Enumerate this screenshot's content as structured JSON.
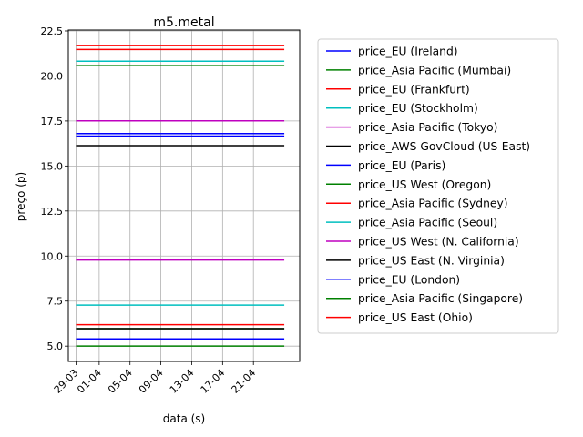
{
  "chart_data": {
    "type": "line",
    "title": "m5.metal",
    "xlabel": "data (s)",
    "ylabel": "preço (p)",
    "x_tick_labels": [
      "29-03",
      "01-04",
      "05-04",
      "09-04",
      "13-04",
      "17-04",
      "21-04"
    ],
    "x_ticks": [
      "2018-03-29",
      "2018-04-01",
      "2018-04-05",
      "2018-04-09",
      "2018-04-13",
      "2018-04-17",
      "2018-04-21"
    ],
    "x_range": [
      "2018-03-28",
      "2018-04-27"
    ],
    "x_start": "2018-03-29",
    "x_end": "2018-04-25",
    "y_ticks": [
      5.0,
      7.5,
      10.0,
      12.5,
      15.0,
      17.5,
      20.0,
      22.5
    ],
    "y_tick_labels": [
      "5.0",
      "7.5",
      "10.0",
      "12.5",
      "15.0",
      "17.5",
      "20.0",
      "22.5"
    ],
    "ylim": [
      4.15,
      22.55
    ],
    "grid": true,
    "legend_position": "outside-right",
    "series": [
      {
        "name": "price_EU (Ireland)",
        "color": "#0000ff",
        "values": [
          16.8,
          16.8
        ]
      },
      {
        "name": "price_Asia Pacific (Mumbai)",
        "color": "#008000",
        "values": [
          20.57,
          20.57
        ]
      },
      {
        "name": "price_EU (Frankfurt)",
        "color": "#ff0000",
        "values": [
          21.7,
          21.7
        ]
      },
      {
        "name": "price_EU (Stockholm)",
        "color": "#00bfbf",
        "values": [
          20.82,
          20.82
        ]
      },
      {
        "name": "price_Asia Pacific (Tokyo)",
        "color": "#bf00bf",
        "values": [
          17.51,
          17.51
        ]
      },
      {
        "name": "price_AWS GovCloud (US-East)",
        "color": "#000000",
        "values": [
          16.13,
          16.13
        ]
      },
      {
        "name": "price_EU (Paris)",
        "color": "#0000ff",
        "values": [
          16.66,
          16.66
        ]
      },
      {
        "name": "price_US West (Oregon)",
        "color": "#008000",
        "values": [
          5.97,
          5.97
        ]
      },
      {
        "name": "price_Asia Pacific (Sydney)",
        "color": "#ff0000",
        "values": [
          21.47,
          21.47
        ]
      },
      {
        "name": "price_Asia Pacific (Seoul)",
        "color": "#00bfbf",
        "values": [
          7.28,
          7.28
        ]
      },
      {
        "name": "price_US West (N. California)",
        "color": "#bf00bf",
        "values": [
          9.78,
          9.78
        ]
      },
      {
        "name": "price_US East (N. Virginia)",
        "color": "#000000",
        "values": [
          5.97,
          5.97
        ]
      },
      {
        "name": "price_EU (London)",
        "color": "#0000ff",
        "values": [
          5.4,
          5.4
        ]
      },
      {
        "name": "price_Asia Pacific (Singapore)",
        "color": "#008000",
        "values": [
          5.0,
          5.0
        ]
      },
      {
        "name": "price_US East (Ohio)",
        "color": "#ff0000",
        "values": [
          6.19,
          6.19
        ]
      }
    ]
  }
}
